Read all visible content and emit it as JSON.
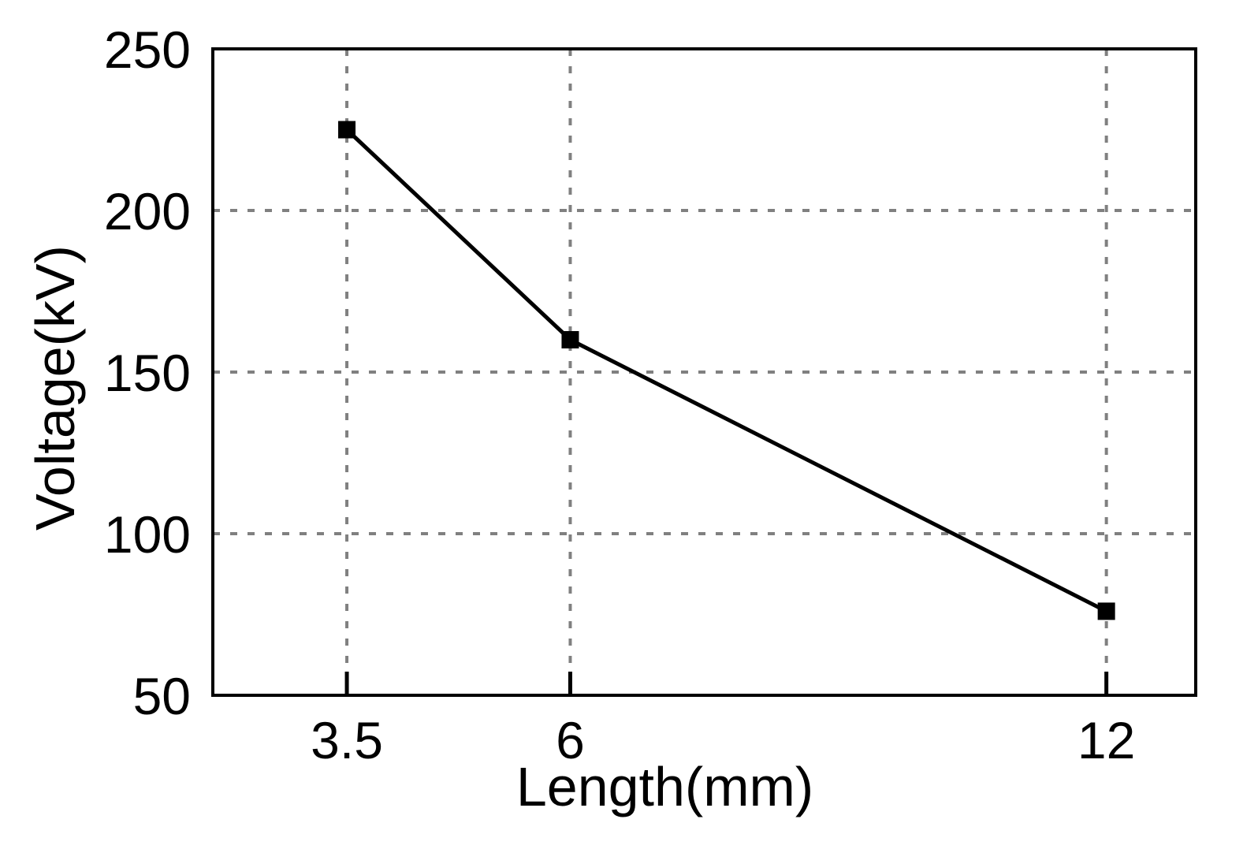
{
  "chart_data": {
    "type": "line",
    "title": "",
    "xlabel": "Length(mm)",
    "ylabel": "Voltage(kV)",
    "x_ticks": [
      "3.5",
      "6",
      "12"
    ],
    "x_tick_values": [
      3.5,
      6,
      12
    ],
    "y_ticks": [
      "50",
      "100",
      "150",
      "200",
      "250"
    ],
    "y_tick_values": [
      50,
      100,
      150,
      200,
      250
    ],
    "xlim": [
      2,
      13
    ],
    "ylim": [
      50,
      250
    ],
    "grid": true,
    "legend": "none",
    "series": [
      {
        "x": [
          3.5,
          6,
          12
        ],
        "values": [
          225,
          160,
          76
        ],
        "marker": "square",
        "color": "#000000"
      }
    ]
  }
}
